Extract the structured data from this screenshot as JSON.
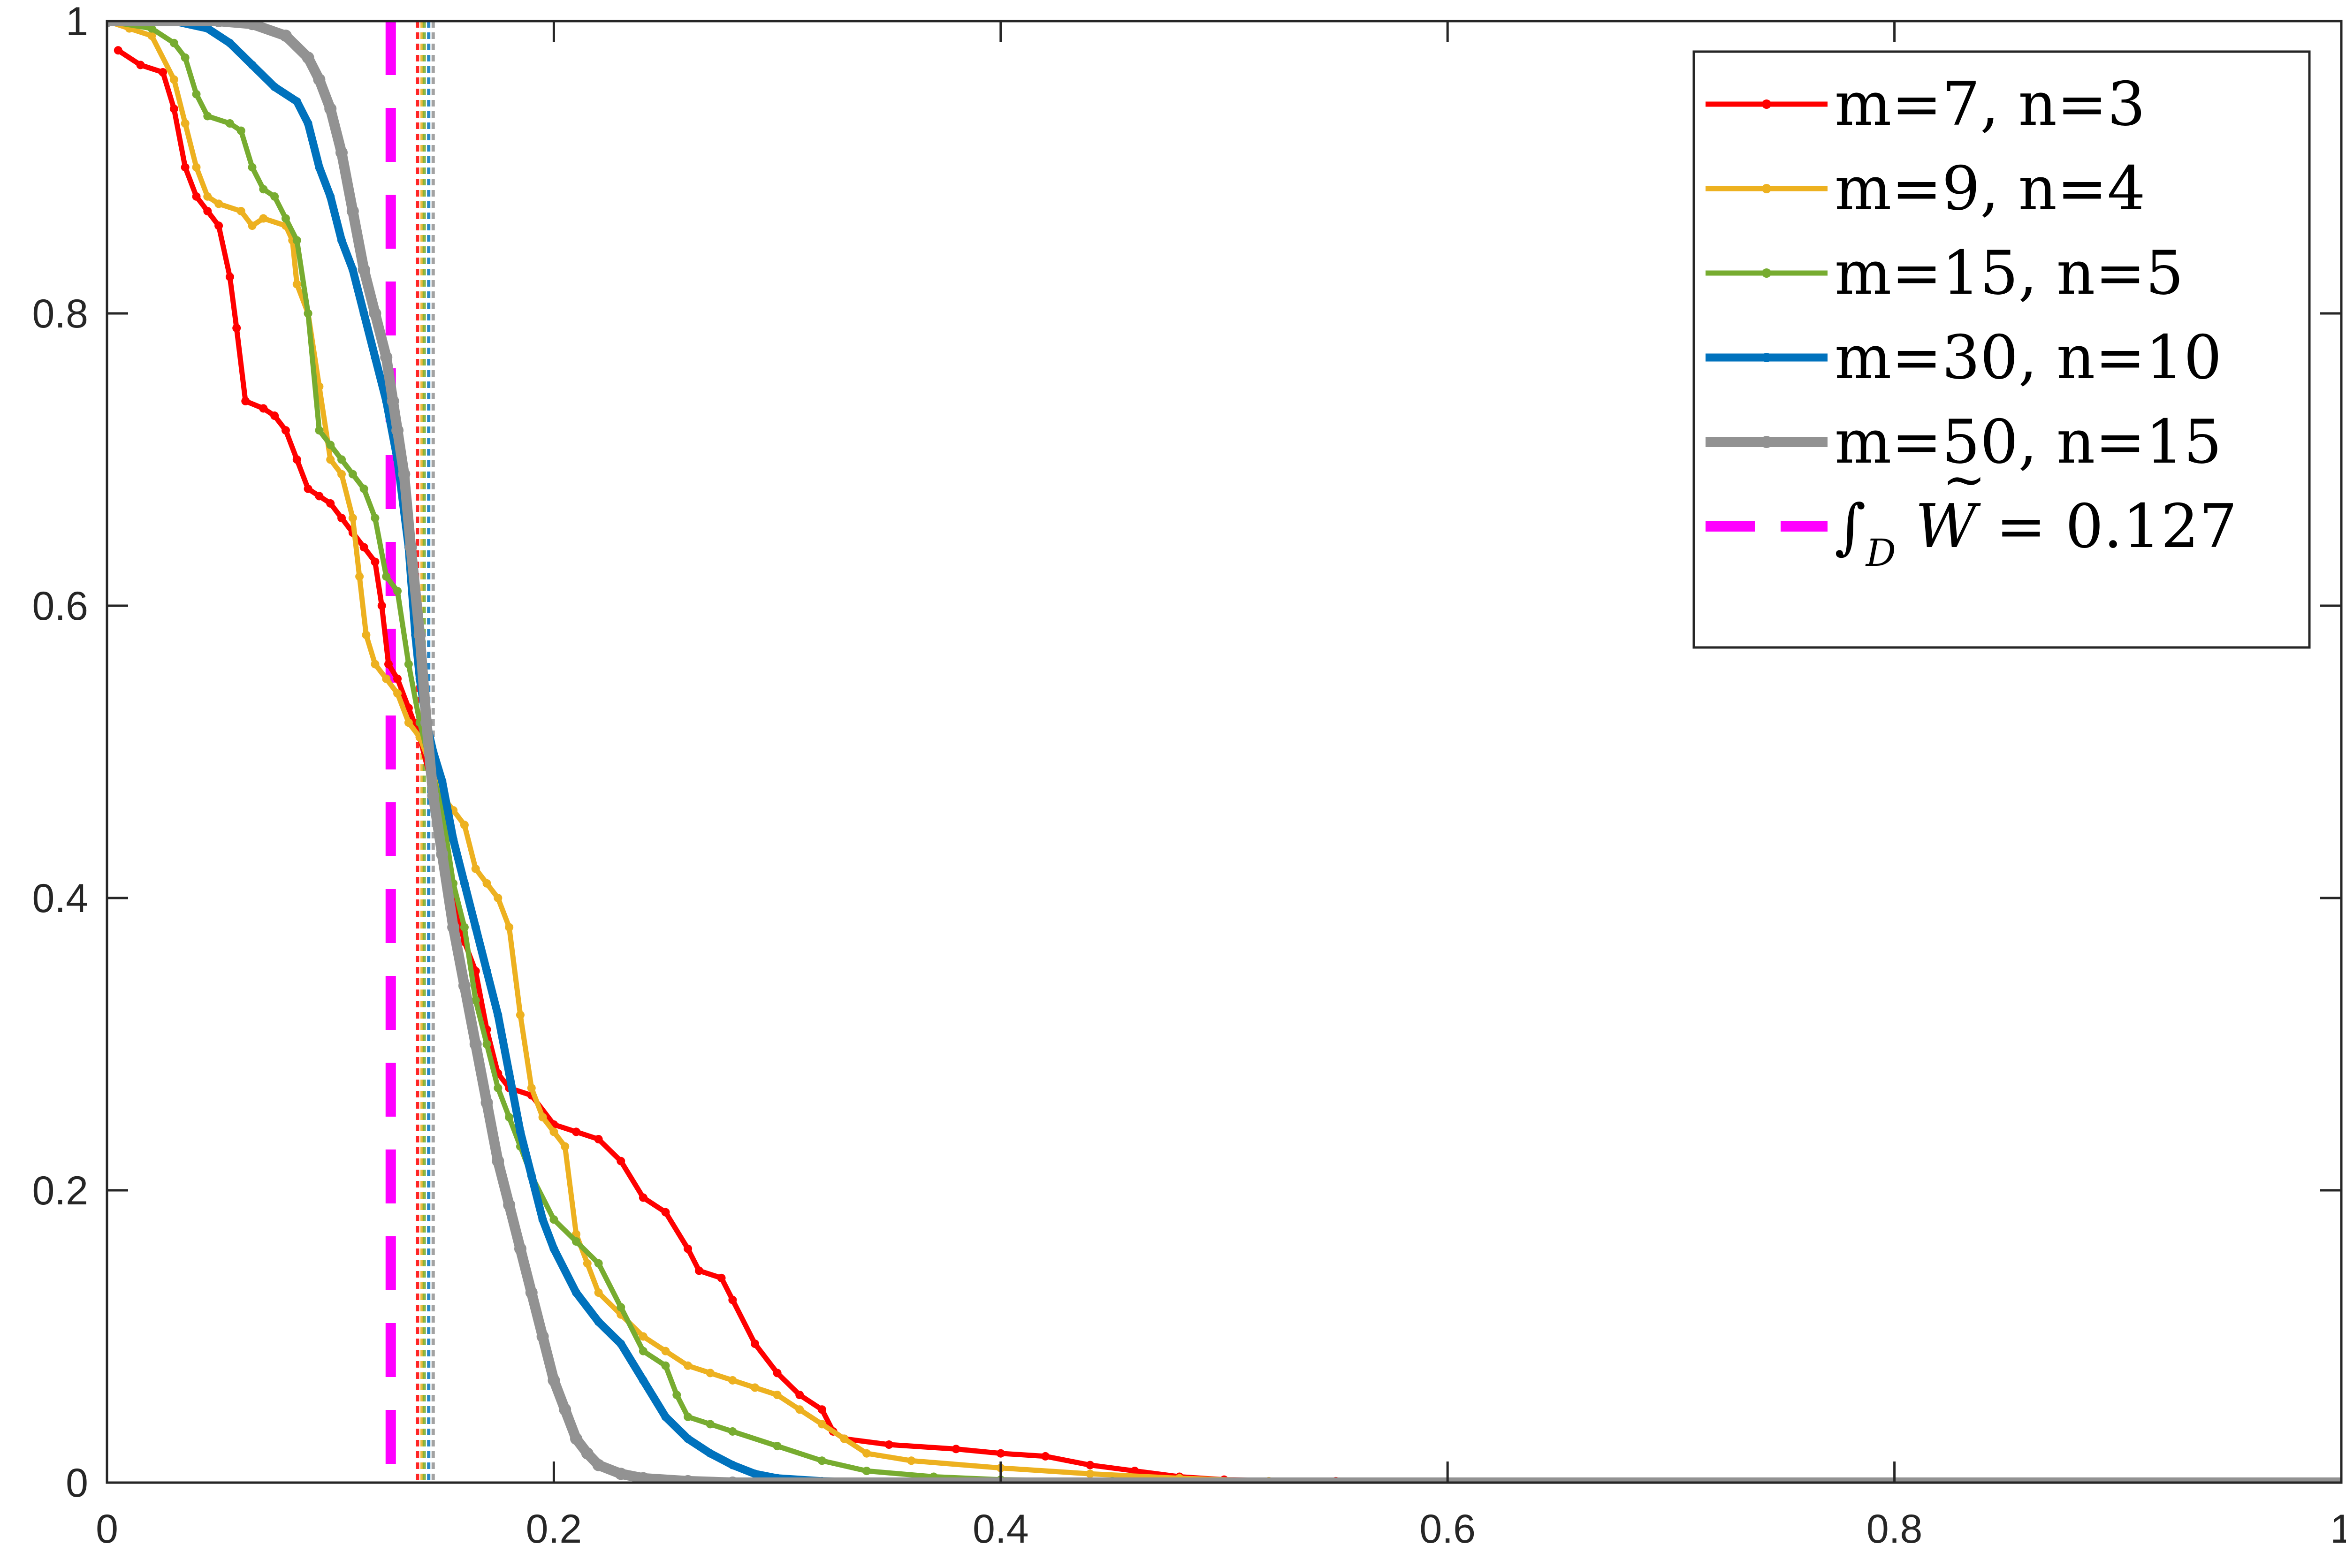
{
  "chart_data": {
    "type": "line",
    "title": "",
    "xlabel": "",
    "ylabel": "",
    "xlim": [
      0,
      1
    ],
    "ylim": [
      0,
      1
    ],
    "grid": false,
    "legend_position": "top-right",
    "x_ticks": [
      "0",
      "0.2",
      "0.4",
      "0.6",
      "0.8",
      "1"
    ],
    "y_ticks": [
      "0",
      "0.2",
      "0.4",
      "0.6",
      "0.8",
      "1"
    ],
    "series": [
      {
        "name": "m=7, n=3",
        "color": "#ff0000",
        "points": [
          [
            0.005,
            0.98
          ],
          [
            0.015,
            0.97
          ],
          [
            0.025,
            0.965
          ],
          [
            0.03,
            0.94
          ],
          [
            0.035,
            0.9
          ],
          [
            0.04,
            0.88
          ],
          [
            0.045,
            0.87
          ],
          [
            0.05,
            0.86
          ],
          [
            0.055,
            0.825
          ],
          [
            0.058,
            0.79
          ],
          [
            0.062,
            0.74
          ],
          [
            0.07,
            0.735
          ],
          [
            0.075,
            0.73
          ],
          [
            0.08,
            0.72
          ],
          [
            0.085,
            0.7
          ],
          [
            0.09,
            0.68
          ],
          [
            0.095,
            0.675
          ],
          [
            0.1,
            0.67
          ],
          [
            0.105,
            0.66
          ],
          [
            0.11,
            0.65
          ],
          [
            0.115,
            0.64
          ],
          [
            0.12,
            0.63
          ],
          [
            0.123,
            0.6
          ],
          [
            0.126,
            0.56
          ],
          [
            0.13,
            0.55
          ],
          [
            0.135,
            0.53
          ],
          [
            0.14,
            0.51
          ],
          [
            0.145,
            0.48
          ],
          [
            0.15,
            0.44
          ],
          [
            0.155,
            0.4
          ],
          [
            0.16,
            0.37
          ],
          [
            0.165,
            0.35
          ],
          [
            0.17,
            0.31
          ],
          [
            0.175,
            0.28
          ],
          [
            0.18,
            0.27
          ],
          [
            0.19,
            0.265
          ],
          [
            0.2,
            0.245
          ],
          [
            0.21,
            0.24
          ],
          [
            0.22,
            0.235
          ],
          [
            0.23,
            0.22
          ],
          [
            0.24,
            0.195
          ],
          [
            0.25,
            0.185
          ],
          [
            0.26,
            0.16
          ],
          [
            0.265,
            0.145
          ],
          [
            0.275,
            0.14
          ],
          [
            0.28,
            0.125
          ],
          [
            0.29,
            0.095
          ],
          [
            0.3,
            0.075
          ],
          [
            0.31,
            0.06
          ],
          [
            0.32,
            0.05
          ],
          [
            0.325,
            0.035
          ],
          [
            0.33,
            0.03
          ],
          [
            0.35,
            0.026
          ],
          [
            0.38,
            0.023
          ],
          [
            0.4,
            0.02
          ],
          [
            0.42,
            0.018
          ],
          [
            0.44,
            0.012
          ],
          [
            0.46,
            0.008
          ],
          [
            0.48,
            0.004
          ],
          [
            0.5,
            0.002
          ],
          [
            0.55,
            0.001
          ],
          [
            0.6,
            0.0
          ],
          [
            1.0,
            0.0
          ]
        ]
      },
      {
        "name": "m=9, n=4",
        "color": "#edb120",
        "points": [
          [
            0.0,
            1.0
          ],
          [
            0.01,
            0.995
          ],
          [
            0.02,
            0.99
          ],
          [
            0.03,
            0.96
          ],
          [
            0.035,
            0.93
          ],
          [
            0.04,
            0.9
          ],
          [
            0.045,
            0.88
          ],
          [
            0.05,
            0.875
          ],
          [
            0.06,
            0.87
          ],
          [
            0.065,
            0.86
          ],
          [
            0.07,
            0.865
          ],
          [
            0.08,
            0.86
          ],
          [
            0.083,
            0.85
          ],
          [
            0.085,
            0.82
          ],
          [
            0.09,
            0.8
          ],
          [
            0.095,
            0.75
          ],
          [
            0.1,
            0.7
          ],
          [
            0.105,
            0.69
          ],
          [
            0.11,
            0.66
          ],
          [
            0.113,
            0.62
          ],
          [
            0.116,
            0.58
          ],
          [
            0.12,
            0.56
          ],
          [
            0.125,
            0.55
          ],
          [
            0.13,
            0.54
          ],
          [
            0.135,
            0.52
          ],
          [
            0.14,
            0.51
          ],
          [
            0.145,
            0.49
          ],
          [
            0.15,
            0.47
          ],
          [
            0.155,
            0.46
          ],
          [
            0.16,
            0.45
          ],
          [
            0.165,
            0.42
          ],
          [
            0.17,
            0.41
          ],
          [
            0.175,
            0.4
          ],
          [
            0.18,
            0.38
          ],
          [
            0.185,
            0.32
          ],
          [
            0.19,
            0.27
          ],
          [
            0.195,
            0.25
          ],
          [
            0.2,
            0.24
          ],
          [
            0.205,
            0.23
          ],
          [
            0.21,
            0.17
          ],
          [
            0.215,
            0.15
          ],
          [
            0.22,
            0.13
          ],
          [
            0.23,
            0.115
          ],
          [
            0.24,
            0.1
          ],
          [
            0.25,
            0.09
          ],
          [
            0.26,
            0.08
          ],
          [
            0.27,
            0.075
          ],
          [
            0.28,
            0.07
          ],
          [
            0.29,
            0.065
          ],
          [
            0.3,
            0.06
          ],
          [
            0.31,
            0.05
          ],
          [
            0.32,
            0.04
          ],
          [
            0.33,
            0.03
          ],
          [
            0.34,
            0.02
          ],
          [
            0.36,
            0.015
          ],
          [
            0.4,
            0.01
          ],
          [
            0.44,
            0.006
          ],
          [
            0.48,
            0.003
          ],
          [
            0.52,
            0.001
          ],
          [
            0.6,
            0.0
          ],
          [
            1.0,
            0.0
          ]
        ]
      },
      {
        "name": "m=15, n=5",
        "color": "#77ac30",
        "points": [
          [
            0.0,
            1.0
          ],
          [
            0.02,
            0.995
          ],
          [
            0.03,
            0.985
          ],
          [
            0.035,
            0.975
          ],
          [
            0.04,
            0.95
          ],
          [
            0.045,
            0.935
          ],
          [
            0.055,
            0.93
          ],
          [
            0.06,
            0.925
          ],
          [
            0.065,
            0.9
          ],
          [
            0.07,
            0.885
          ],
          [
            0.075,
            0.88
          ],
          [
            0.08,
            0.865
          ],
          [
            0.085,
            0.85
          ],
          [
            0.09,
            0.8
          ],
          [
            0.095,
            0.72
          ],
          [
            0.1,
            0.71
          ],
          [
            0.105,
            0.7
          ],
          [
            0.11,
            0.69
          ],
          [
            0.115,
            0.68
          ],
          [
            0.12,
            0.66
          ],
          [
            0.125,
            0.62
          ],
          [
            0.13,
            0.61
          ],
          [
            0.135,
            0.56
          ],
          [
            0.14,
            0.52
          ],
          [
            0.145,
            0.49
          ],
          [
            0.15,
            0.46
          ],
          [
            0.155,
            0.41
          ],
          [
            0.16,
            0.38
          ],
          [
            0.165,
            0.33
          ],
          [
            0.17,
            0.3
          ],
          [
            0.175,
            0.27
          ],
          [
            0.18,
            0.25
          ],
          [
            0.185,
            0.23
          ],
          [
            0.19,
            0.21
          ],
          [
            0.2,
            0.18
          ],
          [
            0.21,
            0.165
          ],
          [
            0.22,
            0.15
          ],
          [
            0.23,
            0.12
          ],
          [
            0.24,
            0.09
          ],
          [
            0.25,
            0.08
          ],
          [
            0.255,
            0.06
          ],
          [
            0.26,
            0.045
          ],
          [
            0.27,
            0.04
          ],
          [
            0.28,
            0.035
          ],
          [
            0.3,
            0.025
          ],
          [
            0.32,
            0.015
          ],
          [
            0.34,
            0.008
          ],
          [
            0.37,
            0.004
          ],
          [
            0.4,
            0.002
          ],
          [
            0.45,
            0.001
          ],
          [
            0.5,
            0.0
          ],
          [
            1.0,
            0.0
          ]
        ]
      },
      {
        "name": "m=30, n=10",
        "color": "#0072bd",
        "points": [
          [
            0.0,
            1.0
          ],
          [
            0.03,
            1.0
          ],
          [
            0.045,
            0.995
          ],
          [
            0.055,
            0.985
          ],
          [
            0.065,
            0.97
          ],
          [
            0.075,
            0.955
          ],
          [
            0.085,
            0.945
          ],
          [
            0.09,
            0.93
          ],
          [
            0.095,
            0.9
          ],
          [
            0.1,
            0.88
          ],
          [
            0.105,
            0.85
          ],
          [
            0.11,
            0.83
          ],
          [
            0.115,
            0.8
          ],
          [
            0.12,
            0.77
          ],
          [
            0.125,
            0.74
          ],
          [
            0.13,
            0.7
          ],
          [
            0.135,
            0.64
          ],
          [
            0.138,
            0.58
          ],
          [
            0.14,
            0.55
          ],
          [
            0.143,
            0.52
          ],
          [
            0.146,
            0.5
          ],
          [
            0.15,
            0.48
          ],
          [
            0.155,
            0.44
          ],
          [
            0.16,
            0.41
          ],
          [
            0.165,
            0.38
          ],
          [
            0.17,
            0.35
          ],
          [
            0.175,
            0.32
          ],
          [
            0.18,
            0.28
          ],
          [
            0.185,
            0.24
          ],
          [
            0.19,
            0.21
          ],
          [
            0.195,
            0.18
          ],
          [
            0.2,
            0.16
          ],
          [
            0.21,
            0.13
          ],
          [
            0.22,
            0.11
          ],
          [
            0.23,
            0.095
          ],
          [
            0.24,
            0.07
          ],
          [
            0.25,
            0.045
          ],
          [
            0.26,
            0.03
          ],
          [
            0.27,
            0.02
          ],
          [
            0.28,
            0.012
          ],
          [
            0.29,
            0.006
          ],
          [
            0.3,
            0.003
          ],
          [
            0.32,
            0.001
          ],
          [
            0.35,
            0.0
          ],
          [
            1.0,
            0.0
          ]
        ]
      },
      {
        "name": "m=50, n=15",
        "color": "#929292",
        "points": [
          [
            0.0,
            1.0
          ],
          [
            0.05,
            1.0
          ],
          [
            0.065,
            0.998
          ],
          [
            0.08,
            0.99
          ],
          [
            0.09,
            0.975
          ],
          [
            0.095,
            0.96
          ],
          [
            0.1,
            0.94
          ],
          [
            0.105,
            0.91
          ],
          [
            0.11,
            0.87
          ],
          [
            0.115,
            0.83
          ],
          [
            0.12,
            0.8
          ],
          [
            0.125,
            0.77
          ],
          [
            0.128,
            0.74
          ],
          [
            0.13,
            0.72
          ],
          [
            0.133,
            0.69
          ],
          [
            0.136,
            0.64
          ],
          [
            0.14,
            0.58
          ],
          [
            0.143,
            0.52
          ],
          [
            0.146,
            0.47
          ],
          [
            0.15,
            0.43
          ],
          [
            0.155,
            0.38
          ],
          [
            0.16,
            0.34
          ],
          [
            0.165,
            0.3
          ],
          [
            0.17,
            0.26
          ],
          [
            0.175,
            0.22
          ],
          [
            0.18,
            0.19
          ],
          [
            0.185,
            0.16
          ],
          [
            0.19,
            0.13
          ],
          [
            0.195,
            0.1
          ],
          [
            0.2,
            0.07
          ],
          [
            0.205,
            0.05
          ],
          [
            0.21,
            0.03
          ],
          [
            0.215,
            0.02
          ],
          [
            0.22,
            0.012
          ],
          [
            0.23,
            0.006
          ],
          [
            0.24,
            0.003
          ],
          [
            0.26,
            0.001
          ],
          [
            0.28,
            0.0
          ],
          [
            1.0,
            0.0
          ]
        ]
      }
    ],
    "reference_line": {
      "label": "∫D W̃ = 0.127",
      "label_integral": "∫",
      "label_sub": "D",
      "label_var": "W",
      "label_eq": "= 0.127",
      "x": 0.127,
      "color": "#ff00ff",
      "style": "dashed"
    },
    "mean_markers": [
      {
        "x": 0.139,
        "color": "#ff0000"
      },
      {
        "x": 0.141,
        "color": "#edb120"
      },
      {
        "x": 0.142,
        "color": "#77ac30"
      },
      {
        "x": 0.144,
        "color": "#0072bd"
      },
      {
        "x": 0.146,
        "color": "#929292"
      }
    ]
  }
}
